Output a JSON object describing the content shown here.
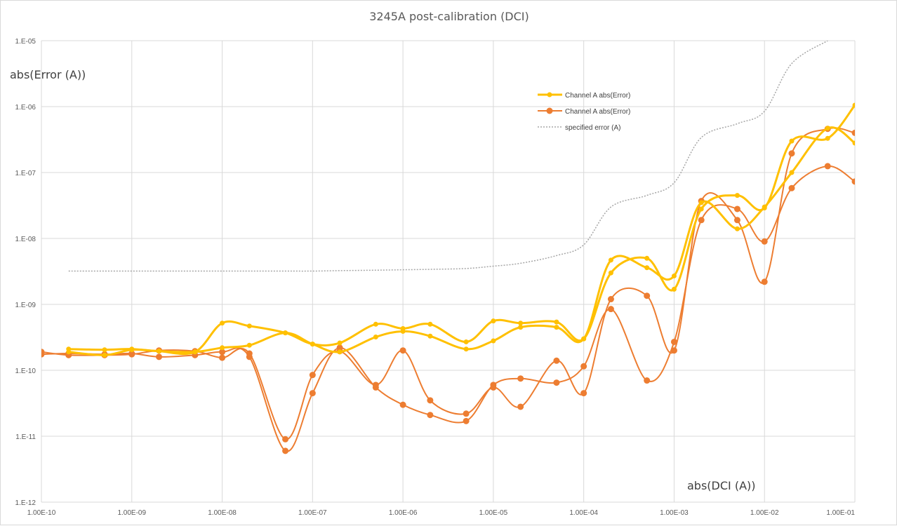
{
  "chart_data": {
    "type": "line",
    "title": "3245A post-calibration (DCI)",
    "xlabel": "abs(DCI (A))",
    "ylabel": "abs(Error (A))",
    "x_scale": "log",
    "y_scale": "log",
    "xlim": [
      1e-10,
      0.1
    ],
    "ylim": [
      1e-12,
      1e-05
    ],
    "x_tick_values": [
      1e-10,
      1e-09,
      1e-08,
      1e-07,
      1e-06,
      1e-05,
      0.0001,
      0.001,
      0.01,
      0.1
    ],
    "x_tick_labels": [
      "1.00E-10",
      "1.00E-09",
      "1.00E-08",
      "1.00E-07",
      "1.00E-06",
      "1.00E-05",
      "1.00E-04",
      "1.00E-03",
      "1.00E-02",
      "1.00E-01"
    ],
    "y_tick_values": [
      1e-12,
      1e-11,
      1e-10,
      1e-09,
      1e-08,
      1e-07,
      1e-06,
      1e-05
    ],
    "y_tick_labels": [
      "1.E-12",
      "1.E-11",
      "1.E-10",
      "1.E-09",
      "1.E-08",
      "1.E-07",
      "1.E-06",
      "1.E-05"
    ],
    "grid": true,
    "legend_position": "top-right",
    "series": [
      {
        "name": "Channel A abs(Error)",
        "color": "#FFC000",
        "marker": "small-dot",
        "line_style": "solid-thick",
        "x": [
          2e-10,
          5e-10,
          1e-09,
          2e-09,
          5e-09,
          1e-08,
          2e-08,
          5e-08,
          1e-07,
          2e-07,
          5e-07,
          1e-06,
          2e-06,
          5e-06,
          1e-05,
          2e-05,
          5e-05,
          0.0001,
          0.0002,
          0.0005,
          0.001,
          0.002,
          0.005,
          0.01,
          0.02,
          0.05,
          0.1
        ],
        "y": [
          2.1e-10,
          2.05e-10,
          2.1e-10,
          1.95e-10,
          1.9e-10,
          5.2e-10,
          4.7e-10,
          3.7e-10,
          2.5e-10,
          2.6e-10,
          5e-10,
          4.3e-10,
          5e-10,
          2.7e-10,
          5.6e-10,
          5.2e-10,
          5.4e-10,
          3e-10,
          3e-09,
          5e-09,
          1.7e-09,
          2.8e-08,
          4.5e-08,
          2.9e-08,
          3e-07,
          3.3e-07,
          1.05e-06
        ]
      },
      {
        "name": "Channel A abs(Error)",
        "color": "#FFC000",
        "marker": "small-dot",
        "line_style": "solid-thick",
        "x": [
          2e-10,
          5e-10,
          1e-09,
          2e-09,
          5e-09,
          1e-08,
          2e-08,
          5e-08,
          1e-07,
          2e-07,
          5e-07,
          1e-06,
          2e-06,
          5e-06,
          1e-05,
          2e-05,
          5e-05,
          0.0001,
          0.0002,
          0.0005,
          0.001,
          0.002,
          0.005,
          0.01,
          0.02,
          0.05,
          0.1
        ],
        "y": [
          1.9e-10,
          1.7e-10,
          2.05e-10,
          1.95e-10,
          1.9e-10,
          2.2e-10,
          2.4e-10,
          3.7e-10,
          2.5e-10,
          1.9e-10,
          3.2e-10,
          3.9e-10,
          3.3e-10,
          2.1e-10,
          2.8e-10,
          4.5e-10,
          4.5e-10,
          3e-10,
          4.7e-09,
          3.6e-09,
          2.7e-09,
          3.5e-08,
          1.4e-08,
          3e-08,
          1e-07,
          4.7e-07,
          2.8e-07
        ]
      },
      {
        "name": "Channel A abs(Error)",
        "color": "#ED7D31",
        "marker": "dot",
        "line_style": "solid",
        "x": [
          1e-10,
          2e-10,
          5e-10,
          1e-09,
          2e-09,
          5e-09,
          1e-08,
          2e-08,
          5e-08,
          1e-07,
          2e-07,
          5e-07,
          1e-06,
          2e-06,
          5e-06,
          1e-05,
          2e-05,
          5e-05,
          0.0001,
          0.0002,
          0.0005,
          0.001,
          0.002,
          0.005,
          0.01,
          0.02,
          0.05,
          0.1
        ],
        "y": [
          1.9e-10,
          1.7e-10,
          1.7e-10,
          1.75e-10,
          2e-10,
          1.95e-10,
          1.55e-10,
          1.8e-10,
          9e-12,
          8.5e-11,
          1.95e-10,
          6e-11,
          2e-10,
          3.5e-11,
          2.2e-11,
          5.5e-11,
          2.8e-11,
          1.4e-10,
          4.5e-11,
          1.2e-09,
          1.35e-09,
          2e-10,
          3.7e-08,
          1.9e-08,
          2.2e-09,
          1.95e-07,
          4.6e-07,
          4e-07
        ]
      },
      {
        "name": "Channel A abs(Error)",
        "color": "#ED7D31",
        "marker": "dot",
        "line_style": "solid",
        "x": [
          1e-10,
          2e-10,
          5e-10,
          1e-09,
          2e-09,
          5e-09,
          1e-08,
          2e-08,
          5e-08,
          1e-07,
          2e-07,
          5e-07,
          1e-06,
          2e-06,
          5e-06,
          1e-05,
          2e-05,
          5e-05,
          0.0001,
          0.0002,
          0.0005,
          0.001,
          0.002,
          0.005,
          0.01,
          0.02,
          0.05,
          0.1
        ],
        "y": [
          1.75e-10,
          1.8e-10,
          1.75e-10,
          1.8e-10,
          1.6e-10,
          1.7e-10,
          1.9e-10,
          1.6e-10,
          6e-12,
          4.5e-11,
          2.2e-10,
          5.5e-11,
          3e-11,
          2.1e-11,
          1.7e-11,
          6e-11,
          7.5e-11,
          6.5e-11,
          1.15e-10,
          8.5e-10,
          7e-11,
          2.7e-10,
          1.9e-08,
          2.8e-08,
          9e-09,
          5.8e-08,
          1.25e-07,
          7.3e-08
        ]
      },
      {
        "name": "specified error (A)",
        "color": "#A6A6A6",
        "marker": "none",
        "line_style": "dotted",
        "x": [
          2e-10,
          5e-10,
          1e-09,
          2e-09,
          5e-09,
          1e-08,
          2e-08,
          5e-08,
          1e-07,
          2e-07,
          5e-07,
          1e-06,
          2e-06,
          5e-06,
          1e-05,
          2e-05,
          5e-05,
          0.0001,
          0.0002,
          0.0005,
          0.001,
          0.002,
          0.005,
          0.01,
          0.02,
          0.05
        ],
        "y": [
          3.2e-09,
          3.2e-09,
          3.2e-09,
          3.2e-09,
          3.2e-09,
          3.2e-09,
          3.2e-09,
          3.2e-09,
          3.2e-09,
          3.25e-09,
          3.3e-09,
          3.35e-09,
          3.4e-09,
          3.5e-09,
          3.8e-09,
          4.2e-09,
          5.5e-09,
          8e-09,
          3e-08,
          4.5e-08,
          7e-08,
          3.4e-07,
          5.5e-07,
          8.5e-07,
          4.5e-06,
          1e-05
        ]
      }
    ],
    "legend_entries": [
      {
        "label": "Channel A abs(Error)",
        "color": "#FFC000",
        "style": "thick-dot"
      },
      {
        "label": "Channel A abs(Error)",
        "color": "#ED7D31",
        "style": "dot"
      },
      {
        "label": "specified error (A)",
        "color": "#A6A6A6",
        "style": "dotted"
      }
    ]
  }
}
